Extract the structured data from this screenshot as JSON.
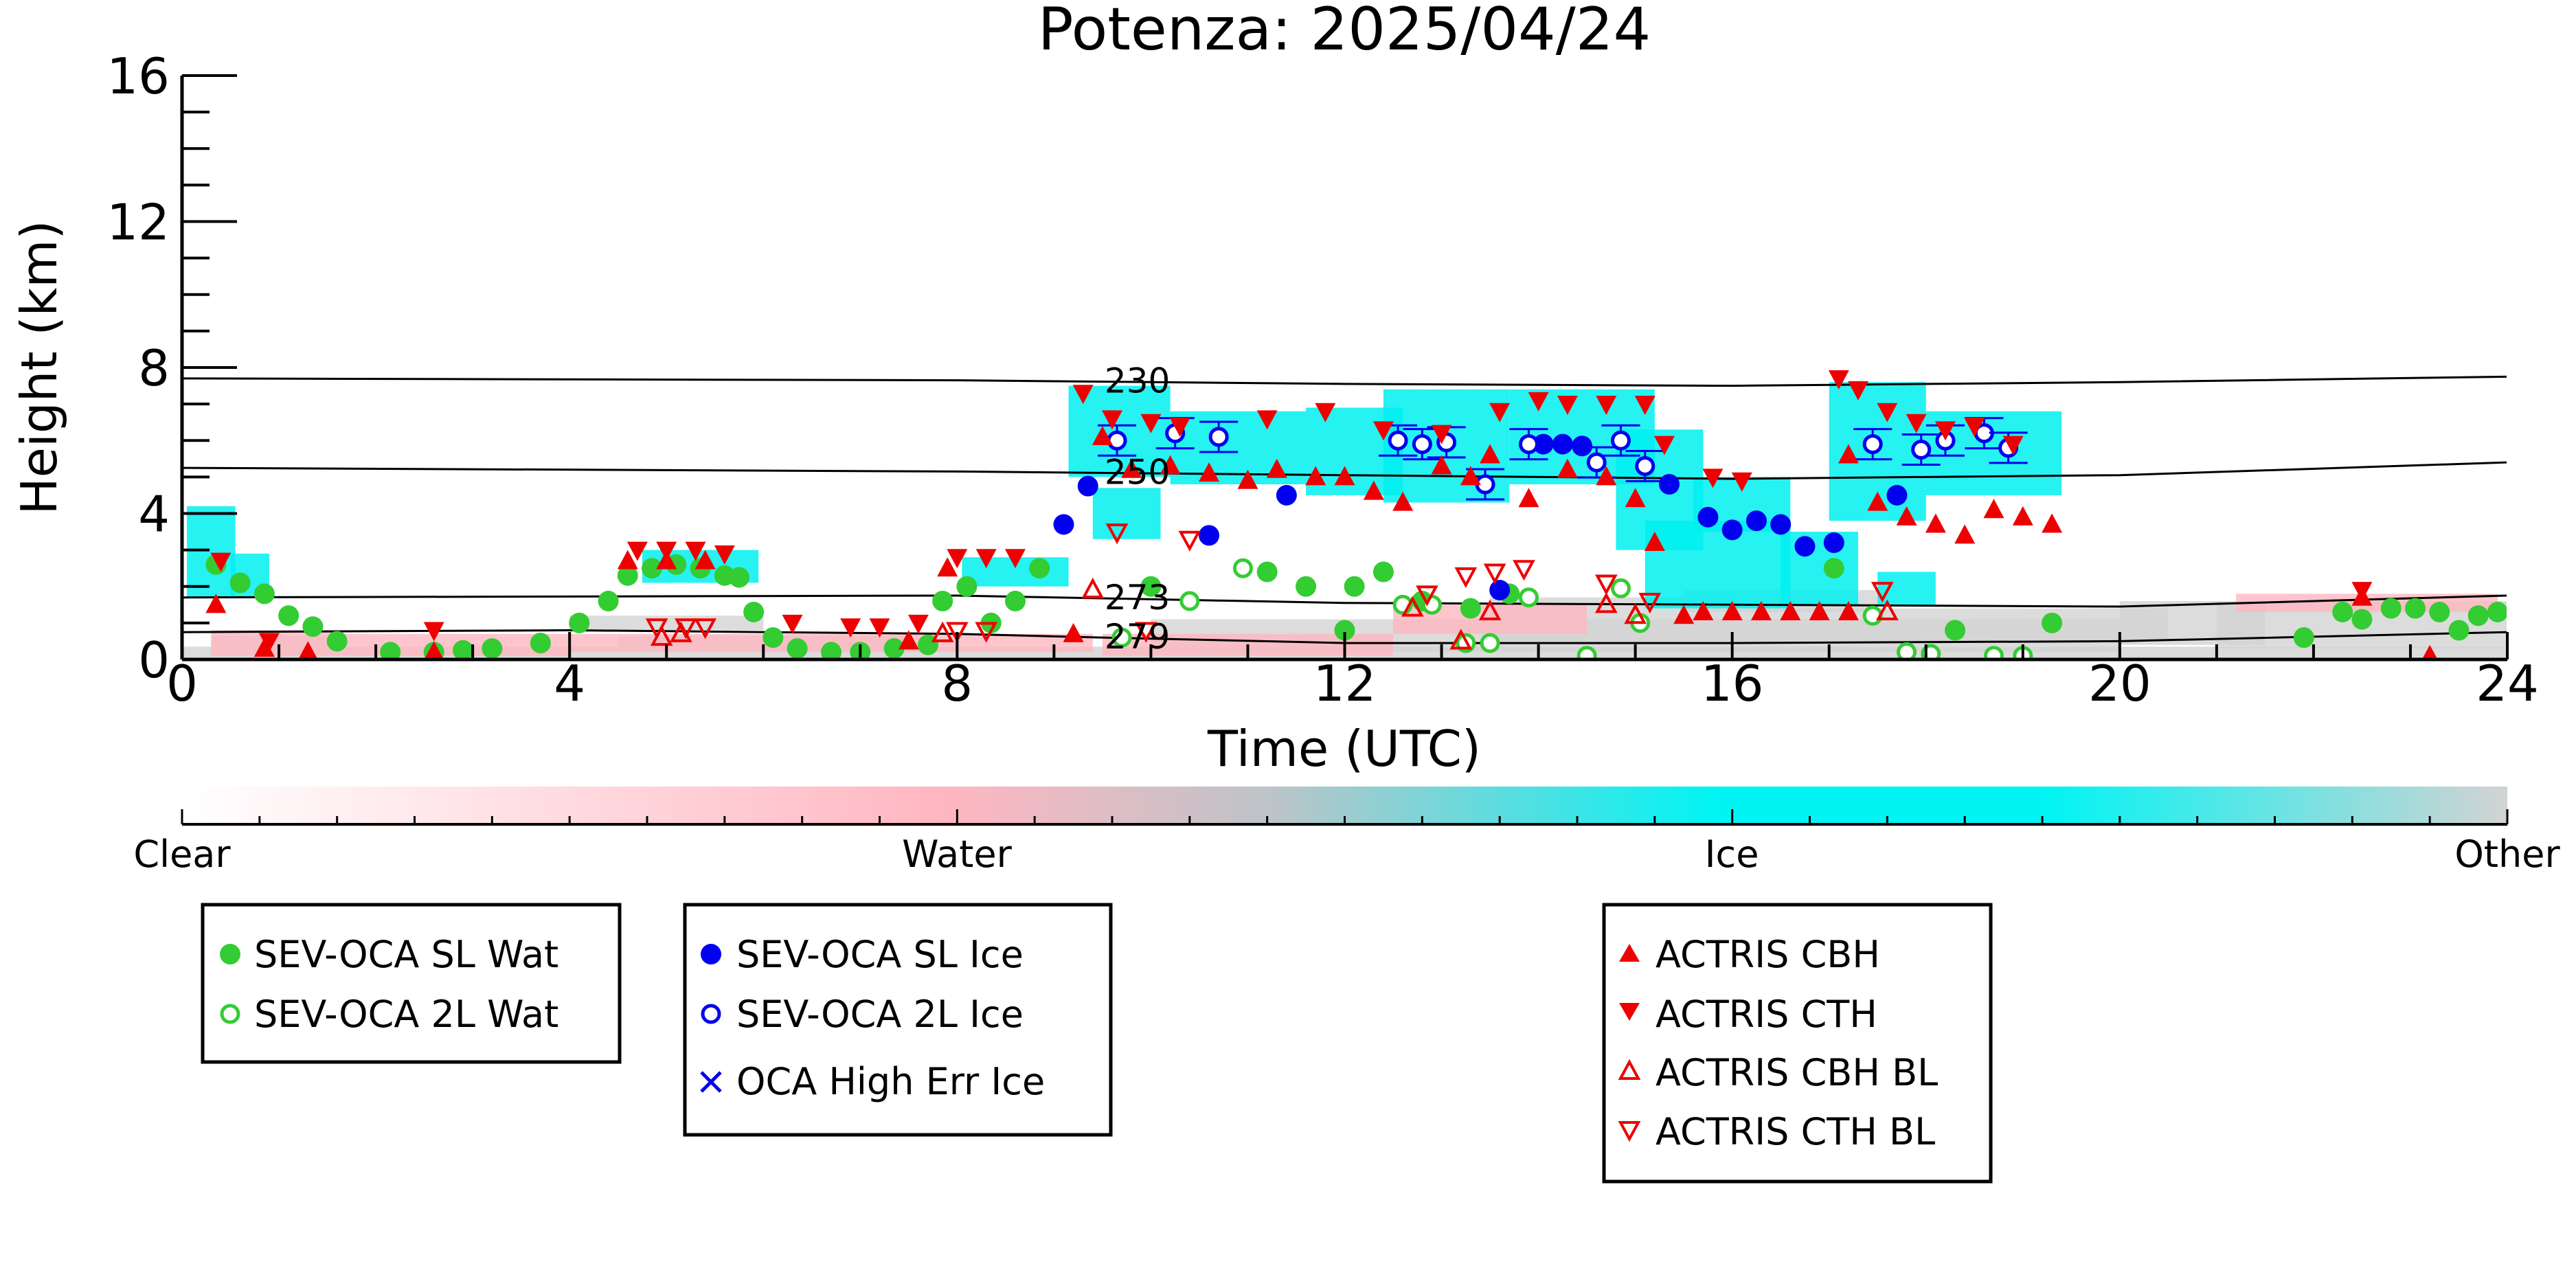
{
  "chart_data": {
    "type": "scatter",
    "title": "Potenza: 2025/04/24",
    "xlabel": "Time (UTC)",
    "ylabel": "Height (km)",
    "xlim": [
      0,
      24
    ],
    "ylim": [
      0,
      16
    ],
    "x_ticks": [
      "0",
      "4",
      "8",
      "12",
      "16",
      "20",
      "24"
    ],
    "y_ticks": [
      "0",
      "4",
      "8",
      "12",
      "16"
    ],
    "isotherms": [
      {
        "label": "230",
        "points": [
          [
            0,
            7.7
          ],
          [
            8,
            7.65
          ],
          [
            12,
            7.55
          ],
          [
            16,
            7.5
          ],
          [
            20,
            7.6
          ],
          [
            24,
            7.75
          ]
        ]
      },
      {
        "label": "250",
        "points": [
          [
            0,
            5.25
          ],
          [
            8,
            5.15
          ],
          [
            12,
            5.05
          ],
          [
            16,
            4.95
          ],
          [
            20,
            5.05
          ],
          [
            24,
            5.4
          ]
        ]
      },
      {
        "label": "273",
        "points": [
          [
            0,
            1.7
          ],
          [
            8,
            1.75
          ],
          [
            12,
            1.55
          ],
          [
            16,
            1.5
          ],
          [
            20,
            1.45
          ],
          [
            24,
            1.75
          ]
        ]
      },
      {
        "label": "279",
        "points": [
          [
            0,
            0.75
          ],
          [
            4,
            0.8
          ],
          [
            8,
            0.7
          ],
          [
            9.5,
            0.6
          ],
          [
            12,
            0.45
          ],
          [
            16,
            0.45
          ],
          [
            20,
            0.5
          ],
          [
            24,
            0.75
          ]
        ]
      }
    ],
    "colors": {
      "sl_wat": "#33cc33",
      "sl_ice": "#0000ee",
      "actris": "#ee0000",
      "ice_fill": "#00f0f0",
      "water_fill": "#ffb6c1",
      "other_fill": "#d3d3d3"
    },
    "colorbar": {
      "labels": [
        "Clear",
        "Water",
        "Ice",
        "Other"
      ]
    },
    "series": [
      {
        "name": "SEV-OCA SL Wat",
        "marker": "filled-circle",
        "color": "#33cc33",
        "points": [
          [
            0.35,
            2.6
          ],
          [
            0.6,
            2.1
          ],
          [
            0.85,
            1.8
          ],
          [
            1.1,
            1.2
          ],
          [
            1.35,
            0.9
          ],
          [
            1.6,
            0.5
          ],
          [
            2.15,
            0.2
          ],
          [
            2.6,
            0.2
          ],
          [
            2.9,
            0.25
          ],
          [
            3.2,
            0.3
          ],
          [
            3.7,
            0.45
          ],
          [
            4.1,
            1.0
          ],
          [
            4.4,
            1.6
          ],
          [
            4.6,
            2.3
          ],
          [
            4.85,
            2.5
          ],
          [
            5.1,
            2.6
          ],
          [
            5.35,
            2.5
          ],
          [
            5.6,
            2.3
          ],
          [
            5.75,
            2.25
          ],
          [
            5.9,
            1.3
          ],
          [
            6.1,
            0.6
          ],
          [
            6.35,
            0.3
          ],
          [
            6.7,
            0.2
          ],
          [
            7.0,
            0.2
          ],
          [
            7.35,
            0.3
          ],
          [
            7.7,
            0.4
          ],
          [
            7.85,
            1.6
          ],
          [
            8.1,
            2.0
          ],
          [
            8.35,
            1.0
          ],
          [
            8.6,
            1.6
          ],
          [
            8.85,
            2.5
          ],
          [
            10.0,
            2.0
          ],
          [
            11.2,
            2.4
          ],
          [
            11.6,
            2.0
          ],
          [
            12.0,
            0.8
          ],
          [
            12.1,
            2.0
          ],
          [
            12.4,
            2.4
          ],
          [
            12.8,
            1.6
          ],
          [
            13.3,
            1.4
          ],
          [
            13.7,
            1.8
          ],
          [
            17.05,
            2.5
          ],
          [
            18.3,
            0.8
          ],
          [
            19.3,
            1.0
          ],
          [
            21.9,
            0.6
          ],
          [
            22.3,
            1.3
          ],
          [
            22.5,
            1.1
          ],
          [
            22.8,
            1.4
          ],
          [
            23.05,
            1.4
          ],
          [
            23.3,
            1.3
          ],
          [
            23.5,
            0.8
          ],
          [
            23.7,
            1.2
          ],
          [
            23.9,
            1.3
          ]
        ]
      },
      {
        "name": "SEV-OCA 2L Wat",
        "marker": "open-circle",
        "color": "#33cc33",
        "points": [
          [
            9.7,
            0.6
          ],
          [
            10.4,
            1.6
          ],
          [
            10.95,
            2.5
          ],
          [
            12.6,
            1.5
          ],
          [
            12.9,
            1.5
          ],
          [
            13.25,
            0.45
          ],
          [
            13.5,
            0.45
          ],
          [
            13.9,
            1.7
          ],
          [
            14.5,
            0.1
          ],
          [
            14.85,
            1.95
          ],
          [
            15.05,
            1.0
          ],
          [
            17.45,
            1.2
          ],
          [
            17.8,
            0.2
          ],
          [
            18.05,
            0.15
          ],
          [
            18.7,
            0.1
          ],
          [
            19.0,
            0.1
          ]
        ]
      },
      {
        "name": "SEV-OCA SL Ice",
        "marker": "filled-circle",
        "color": "#0000ee",
        "points": [
          [
            9.1,
            3.7
          ],
          [
            9.35,
            4.75
          ],
          [
            10.6,
            3.4
          ],
          [
            11.4,
            4.5
          ],
          [
            13.6,
            1.9
          ],
          [
            14.05,
            5.9
          ],
          [
            14.25,
            5.9
          ],
          [
            14.45,
            5.85
          ],
          [
            15.35,
            4.8
          ],
          [
            15.75,
            3.9
          ],
          [
            16.0,
            3.55
          ],
          [
            16.25,
            3.8
          ],
          [
            16.5,
            3.7
          ],
          [
            16.75,
            3.1
          ],
          [
            17.05,
            3.2
          ],
          [
            17.7,
            4.5
          ]
        ]
      },
      {
        "name": "SEV-OCA 2L Ice",
        "marker": "open-circle",
        "color": "#0000ee",
        "points": [
          [
            9.65,
            6.0
          ],
          [
            10.25,
            6.2
          ],
          [
            10.7,
            6.1
          ],
          [
            12.55,
            6.0
          ],
          [
            12.8,
            5.9
          ],
          [
            13.05,
            5.95
          ],
          [
            13.45,
            4.8
          ],
          [
            13.9,
            5.9
          ],
          [
            14.6,
            5.4
          ],
          [
            14.85,
            6.0
          ],
          [
            15.1,
            5.3
          ],
          [
            17.45,
            5.9
          ],
          [
            17.95,
            5.75
          ],
          [
            18.2,
            6.0
          ],
          [
            18.6,
            6.2
          ],
          [
            18.85,
            5.8
          ]
        ]
      },
      {
        "name": "OCA High Err Ice",
        "marker": "x",
        "color": "#0000ee",
        "points": []
      },
      {
        "name": "ACTRIS CBH",
        "marker": "filled-triangle-up",
        "color": "#ee0000",
        "points": [
          [
            0.35,
            1.5
          ],
          [
            0.85,
            0.3
          ],
          [
            1.3,
            0.2
          ],
          [
            2.6,
            0.2
          ],
          [
            4.6,
            2.7
          ],
          [
            5.0,
            2.7
          ],
          [
            5.4,
            2.7
          ],
          [
            7.5,
            0.5
          ],
          [
            7.9,
            2.5
          ],
          [
            9.2,
            0.7
          ],
          [
            9.5,
            6.1
          ],
          [
            9.8,
            5.2
          ],
          [
            10.2,
            5.3
          ],
          [
            10.6,
            5.1
          ],
          [
            11.0,
            4.9
          ],
          [
            11.3,
            5.2
          ],
          [
            11.7,
            5.0
          ],
          [
            12.0,
            5.0
          ],
          [
            12.3,
            4.6
          ],
          [
            12.6,
            4.3
          ],
          [
            13.0,
            5.3
          ],
          [
            13.3,
            5.0
          ],
          [
            13.5,
            5.6
          ],
          [
            13.9,
            4.4
          ],
          [
            14.3,
            5.2
          ],
          [
            14.7,
            5.0
          ],
          [
            15.0,
            4.4
          ],
          [
            15.2,
            3.2
          ],
          [
            15.5,
            1.2
          ],
          [
            15.7,
            1.3
          ],
          [
            16.0,
            1.3
          ],
          [
            16.3,
            1.3
          ],
          [
            16.6,
            1.3
          ],
          [
            16.9,
            1.3
          ],
          [
            17.2,
            1.3
          ],
          [
            17.2,
            5.6
          ],
          [
            17.5,
            4.3
          ],
          [
            17.8,
            3.9
          ],
          [
            18.1,
            3.7
          ],
          [
            18.4,
            3.4
          ],
          [
            18.7,
            4.1
          ],
          [
            19.0,
            3.9
          ],
          [
            19.3,
            3.7
          ],
          [
            22.5,
            1.7
          ],
          [
            23.2,
            0.1
          ]
        ]
      },
      {
        "name": "ACTRIS CTH",
        "marker": "filled-triangle-down",
        "color": "#ee0000",
        "points": [
          [
            0.4,
            2.7
          ],
          [
            0.9,
            0.5
          ],
          [
            2.6,
            0.8
          ],
          [
            4.7,
            3.0
          ],
          [
            5.0,
            3.0
          ],
          [
            5.3,
            3.0
          ],
          [
            5.6,
            2.9
          ],
          [
            6.3,
            1.0
          ],
          [
            6.9,
            0.9
          ],
          [
            7.2,
            0.9
          ],
          [
            7.6,
            1.0
          ],
          [
            8.0,
            2.8
          ],
          [
            8.3,
            2.8
          ],
          [
            8.6,
            2.8
          ],
          [
            9.3,
            7.3
          ],
          [
            9.6,
            6.6
          ],
          [
            10.0,
            6.5
          ],
          [
            10.3,
            6.4
          ],
          [
            11.2,
            6.6
          ],
          [
            11.8,
            6.8
          ],
          [
            12.4,
            6.3
          ],
          [
            13.0,
            6.2
          ],
          [
            13.6,
            6.8
          ],
          [
            14.0,
            7.1
          ],
          [
            14.3,
            7.0
          ],
          [
            14.7,
            7.0
          ],
          [
            15.1,
            7.0
          ],
          [
            15.3,
            5.9
          ],
          [
            15.8,
            5.0
          ],
          [
            16.1,
            4.9
          ],
          [
            17.1,
            7.7
          ],
          [
            17.3,
            7.4
          ],
          [
            17.6,
            6.8
          ],
          [
            17.9,
            6.5
          ],
          [
            18.2,
            6.3
          ],
          [
            18.5,
            6.4
          ],
          [
            18.9,
            5.9
          ],
          [
            22.5,
            1.9
          ]
        ]
      },
      {
        "name": "ACTRIS CBH BL",
        "marker": "open-triangle-up",
        "color": "#ee0000",
        "points": [
          [
            4.95,
            0.6
          ],
          [
            5.15,
            0.7
          ],
          [
            7.85,
            0.7
          ],
          [
            9.4,
            1.9
          ],
          [
            12.7,
            1.4
          ],
          [
            13.2,
            0.5
          ],
          [
            13.5,
            1.3
          ],
          [
            14.7,
            1.5
          ],
          [
            15.0,
            1.2
          ],
          [
            17.6,
            1.3
          ]
        ]
      },
      {
        "name": "ACTRIS CTH BL",
        "marker": "open-triangle-down",
        "color": "#ee0000",
        "points": [
          [
            4.9,
            0.9
          ],
          [
            5.2,
            0.9
          ],
          [
            5.4,
            0.9
          ],
          [
            8.0,
            0.8
          ],
          [
            8.3,
            0.8
          ],
          [
            9.65,
            3.5
          ],
          [
            9.95,
            0.8
          ],
          [
            10.4,
            3.3
          ],
          [
            12.85,
            1.8
          ],
          [
            13.25,
            2.3
          ],
          [
            13.55,
            2.4
          ],
          [
            13.85,
            2.5
          ],
          [
            14.7,
            2.1
          ],
          [
            15.15,
            1.6
          ],
          [
            17.55,
            1.9
          ]
        ]
      }
    ],
    "cloud_masks": [
      {
        "phase": "ice",
        "rects": [
          [
            0.05,
            1.7,
            0.5,
            2.5
          ],
          [
            0.5,
            1.7,
            0.4,
            1.2
          ],
          [
            4.75,
            2.1,
            1.2,
            0.9
          ],
          [
            8.05,
            2.0,
            1.1,
            0.8
          ],
          [
            9.15,
            5.0,
            1.05,
            2.5
          ],
          [
            9.4,
            3.3,
            0.7,
            1.4
          ],
          [
            10.2,
            4.8,
            1.4,
            2.0
          ],
          [
            11.6,
            4.5,
            1.0,
            2.4
          ],
          [
            12.4,
            4.3,
            1.3,
            3.1
          ],
          [
            13.7,
            4.8,
            1.5,
            2.6
          ],
          [
            14.8,
            3.0,
            0.9,
            3.3
          ],
          [
            15.1,
            1.4,
            1.5,
            2.4
          ],
          [
            15.6,
            3.5,
            1.0,
            1.5
          ],
          [
            16.5,
            1.5,
            0.8,
            2.0
          ],
          [
            17.0,
            3.8,
            1.0,
            3.8
          ],
          [
            18.0,
            4.5,
            1.4,
            2.3
          ],
          [
            17.5,
            1.5,
            0.6,
            0.9
          ]
        ]
      },
      {
        "phase": "water",
        "rects": [
          [
            0.3,
            0.1,
            1.3,
            0.7
          ],
          [
            1.6,
            0.1,
            2.4,
            0.6
          ],
          [
            4.0,
            0.2,
            3.8,
            0.5
          ],
          [
            7.8,
            0.2,
            1.6,
            0.5
          ],
          [
            9.5,
            0.1,
            3.0,
            0.6
          ],
          [
            12.5,
            0.7,
            2.0,
            0.8
          ],
          [
            21.2,
            1.3,
            2.7,
            0.5
          ]
        ]
      },
      {
        "phase": "other",
        "rects": [
          [
            0.0,
            0.0,
            24.0,
            0.35
          ],
          [
            0.3,
            0.35,
            1.2,
            0.3
          ],
          [
            4.5,
            0.35,
            3.0,
            0.3
          ],
          [
            10.0,
            0.2,
            10.0,
            0.9
          ],
          [
            13.5,
            0.4,
            2.5,
            1.3
          ],
          [
            16.0,
            0.5,
            4.5,
            0.9
          ],
          [
            20.0,
            0.4,
            1.5,
            1.2
          ],
          [
            21.0,
            0.3,
            3.0,
            1.3
          ],
          [
            15.5,
            1.3,
            2.0,
            0.6
          ],
          [
            4.0,
            0.8,
            2.0,
            0.4
          ]
        ]
      }
    ],
    "legend_boxes": [
      {
        "entries": [
          "SEV-OCA SL Wat",
          "SEV-OCA 2L Wat"
        ]
      },
      {
        "entries": [
          "SEV-OCA SL Ice",
          "SEV-OCA 2L Ice",
          "OCA High Err Ice"
        ]
      },
      {
        "entries": [
          "ACTRIS CBH",
          "ACTRIS CTH",
          "ACTRIS CBH BL",
          "ACTRIS CTH BL"
        ]
      }
    ]
  }
}
